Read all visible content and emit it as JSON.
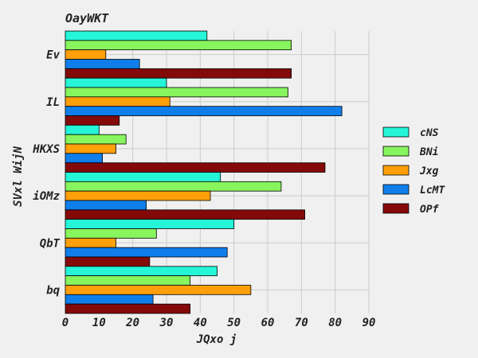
{
  "chart_data": {
    "type": "bar",
    "orientation": "horizontal",
    "title": "OayWKT",
    "xlabel": "JQxo j",
    "ylabel": "SVxl WijN",
    "categories": [
      "Ev",
      "IL",
      "HKXS",
      "iOMz",
      "QbT",
      "bq"
    ],
    "xlim": [
      0,
      90
    ],
    "xticks": [
      0,
      10,
      20,
      30,
      40,
      50,
      60,
      70,
      80,
      90
    ],
    "grid": true,
    "legend_position": "right",
    "series": [
      {
        "name": "cNS",
        "color": "#26f5d8",
        "values": [
          42,
          30,
          10,
          46,
          50,
          45
        ]
      },
      {
        "name": "BNi",
        "color": "#87f55e",
        "values": [
          67,
          66,
          18,
          64,
          27,
          37
        ]
      },
      {
        "name": "Jxg",
        "color": "#ff9f0a",
        "values": [
          12,
          31,
          15,
          43,
          15,
          55
        ]
      },
      {
        "name": "LcMT",
        "color": "#0f7eea",
        "values": [
          22,
          82,
          11,
          24,
          48,
          26
        ]
      },
      {
        "name": "OPf",
        "color": "#840a0a",
        "values": [
          67,
          16,
          77,
          71,
          25,
          37
        ]
      }
    ]
  }
}
